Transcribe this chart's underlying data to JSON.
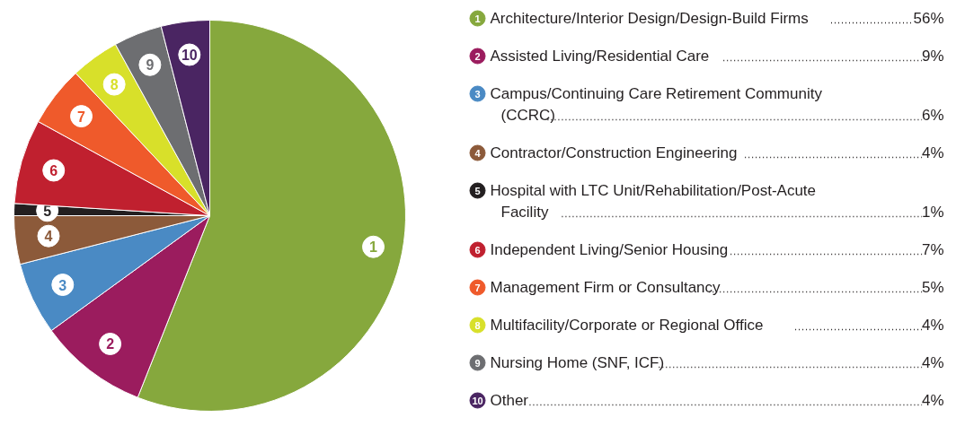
{
  "chart_data": {
    "type": "pie",
    "legend": "right",
    "categories": [
      "Architecture/Interior Design/Design-Build Firms",
      "Assisted Living/Residential Care",
      "Campus/Continuing Care Retirement Community (CCRC)",
      "Contractor/Construction Engineering",
      "Hospital with LTC Unit/Rehabilitation/Post-Acute Facility",
      "Independent Living/Senior Housing",
      "Management Firm or Consultancy",
      "Multifacility/Corporate or Regional Office",
      "Nursing Home (SNF, ICF)",
      "Other"
    ],
    "values": [
      56,
      9,
      6,
      4,
      1,
      7,
      5,
      4,
      4,
      4
    ],
    "value_labels": [
      "56%",
      "9%",
      "6%",
      "4%",
      "1%",
      "7%",
      "5%",
      "4%",
      "4%",
      "4%"
    ],
    "annotations": [
      "1",
      "2",
      "3",
      "4",
      "5",
      "6",
      "7",
      "8",
      "9",
      "10"
    ],
    "colors": [
      "#86a83d",
      "#9b1c5e",
      "#4a8ac4",
      "#8c5a3a",
      "#231f20",
      "#c0202f",
      "#ef5a2b",
      "#d8e02a",
      "#6d6e71",
      "#4a2562"
    ]
  }
}
